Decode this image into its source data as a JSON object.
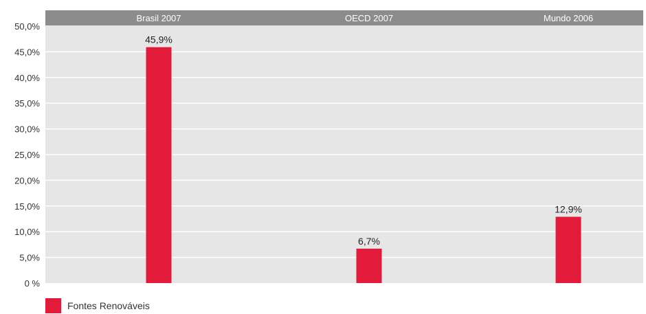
{
  "chart_data": {
    "type": "bar",
    "categories": [
      "Brasil 2007",
      "OECD 2007",
      "Mundo 2006"
    ],
    "series": [
      {
        "name": "Fontes Renováveis",
        "values": [
          45.9,
          6.7,
          12.9
        ]
      }
    ],
    "data_labels": [
      "45,9%",
      "6,7%",
      "12,9%"
    ],
    "y_ticks": [
      0,
      5,
      10,
      15,
      20,
      25,
      30,
      35,
      40,
      45,
      50
    ],
    "y_tick_labels": [
      "0 %",
      "5,0%",
      "10,0%",
      "15,0%",
      "20,0%",
      "25,0%",
      "30,0%",
      "35,0%",
      "40,0%",
      "45,0%",
      "50,0%"
    ],
    "ylim": [
      0,
      50
    ],
    "grid": true,
    "legend_position": "bottom-left",
    "colors": {
      "bar": "#e31b3b",
      "plot_background": "#e6e6e6",
      "header_band": "#8c8c8c",
      "gridline": "#ffffff"
    }
  }
}
